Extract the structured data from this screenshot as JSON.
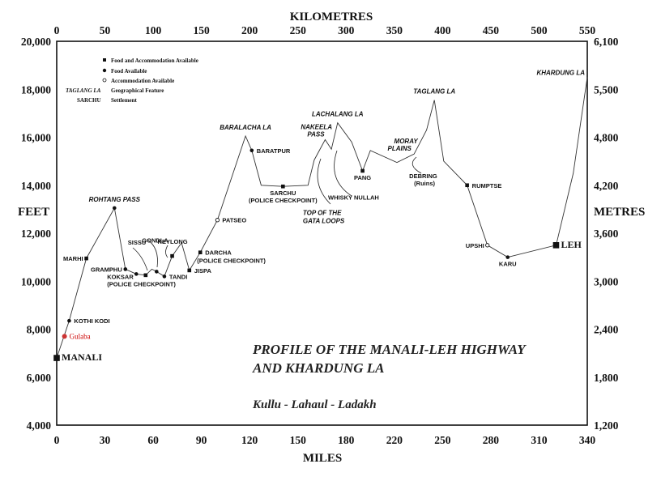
{
  "chart_data": {
    "type": "line",
    "title": "PROFILE OF THE MANALI-LEH HIGHWAY",
    "title_line2": "AND KHARDUNG LA",
    "subtitle": "Kullu - Lahaul - Ladakh",
    "xlabel_bottom": "MILES",
    "xlabel_top": "KILOMETRES",
    "ylabel_left": "FEET",
    "ylabel_right": "METRES",
    "xlim_miles": [
      0,
      340
    ],
    "ylim_feet": [
      4000,
      20000
    ],
    "x_ticks_miles": [
      "0",
      "30",
      "60",
      "90",
      "120",
      "150",
      "180",
      "220",
      "250",
      "280",
      "310",
      "340"
    ],
    "x_ticks_km": [
      "0",
      "50",
      "100",
      "150",
      "200",
      "250",
      "300",
      "350",
      "400",
      "450",
      "500",
      "550"
    ],
    "y_ticks_feet": [
      "4,000",
      "6,000",
      "8,000",
      "10,000",
      "12,000",
      "14,000",
      "16,000",
      "18,000",
      "20,000"
    ],
    "y_ticks_metres": [
      "1,200",
      "1,800",
      "2,400",
      "3,000",
      "3,600",
      "4,200",
      "4,800",
      "5,500",
      "6,100"
    ],
    "grid": false,
    "legend": {
      "placement": "top-left",
      "items": [
        {
          "marker": "square",
          "label": "Food and Accommodation Available"
        },
        {
          "marker": "circle",
          "label": "Food Available"
        },
        {
          "marker": "open-circle",
          "label": "Accommodation Available"
        },
        {
          "marker": "italic",
          "sample": "TAGLANG LA",
          "label": "Geographical Feature"
        },
        {
          "marker": "bold",
          "sample": "SARCHU",
          "label": "Settlement"
        }
      ]
    },
    "profile": [
      {
        "x": 0,
        "y": 6800
      },
      {
        "x": 8,
        "y": 8350
      },
      {
        "x": 19,
        "y": 10950
      },
      {
        "x": 37,
        "y": 13050
      },
      {
        "x": 44,
        "y": 10500
      },
      {
        "x": 51,
        "y": 10300
      },
      {
        "x": 57,
        "y": 10250
      },
      {
        "x": 61,
        "y": 10500
      },
      {
        "x": 64,
        "y": 10400
      },
      {
        "x": 69,
        "y": 10200
      },
      {
        "x": 74,
        "y": 11050
      },
      {
        "x": 80,
        "y": 11600
      },
      {
        "x": 85,
        "y": 10450
      },
      {
        "x": 92,
        "y": 11200
      },
      {
        "x": 103,
        "y": 12550
      },
      {
        "x": 121,
        "y": 16050
      },
      {
        "x": 125,
        "y": 15450
      },
      {
        "x": 131,
        "y": 14000
      },
      {
        "x": 145,
        "y": 13950
      },
      {
        "x": 161,
        "y": 14000
      },
      {
        "x": 165,
        "y": 15050
      },
      {
        "x": 172,
        "y": 15900
      },
      {
        "x": 176,
        "y": 15500
      },
      {
        "x": 180,
        "y": 16600
      },
      {
        "x": 189,
        "y": 15800
      },
      {
        "x": 196,
        "y": 14600
      },
      {
        "x": 201,
        "y": 15450
      },
      {
        "x": 218,
        "y": 14950
      },
      {
        "x": 229,
        "y": 15300
      },
      {
        "x": 237,
        "y": 16300
      },
      {
        "x": 242,
        "y": 17550
      },
      {
        "x": 248,
        "y": 15000
      },
      {
        "x": 263,
        "y": 14000
      },
      {
        "x": 276,
        "y": 11500
      },
      {
        "x": 289,
        "y": 11000
      },
      {
        "x": 320,
        "y": 11500
      },
      {
        "x": 331,
        "y": 14500
      },
      {
        "x": 340,
        "y": 18500
      }
    ],
    "places": [
      {
        "name": "MANALI",
        "x": 0,
        "y": 6800,
        "marker": "square-large",
        "style": "big",
        "pos": "right"
      },
      {
        "name": "Gulaba",
        "x": 5,
        "y": 7700,
        "marker": "red-circle",
        "style": "red",
        "pos": "right"
      },
      {
        "name": "KOTHI KODI",
        "x": 8,
        "y": 8350,
        "marker": "circle",
        "style": "place",
        "pos": "right"
      },
      {
        "name": "MARHI",
        "x": 19,
        "y": 10950,
        "marker": "square",
        "style": "place",
        "pos": "left"
      },
      {
        "name": "ROHTANG PASS",
        "x": 37,
        "y": 13050,
        "marker": "circle",
        "style": "pass",
        "pos": "top"
      },
      {
        "name": "GRAMPHU",
        "x": 44,
        "y": 10500,
        "marker": "circle",
        "style": "place",
        "pos": "left"
      },
      {
        "name": "SISSU",
        "x": 57,
        "y": 10250,
        "marker": "square",
        "style": "place",
        "pos": "sissu"
      },
      {
        "name": "KOKSAR",
        "x": 51,
        "y": 10300,
        "marker": "circle",
        "style": "place",
        "pos": "koksar"
      },
      {
        "name": "(POLICE CHECKPOINT)",
        "x": 51,
        "y": 10300,
        "marker": "none",
        "style": "place",
        "pos": "koksar2"
      },
      {
        "name": "GONDLA",
        "x": 64,
        "y": 10400,
        "marker": "circle",
        "style": "place",
        "pos": "gondla"
      },
      {
        "name": "TANDI",
        "x": 69,
        "y": 10200,
        "marker": "circle",
        "style": "place",
        "pos": "right"
      },
      {
        "name": "KEYLONG",
        "x": 74,
        "y": 11050,
        "marker": "square",
        "style": "place",
        "pos": "keylong"
      },
      {
        "name": "JISPA",
        "x": 85,
        "y": 10450,
        "marker": "square",
        "style": "place",
        "pos": "right"
      },
      {
        "name": "DARCHA",
        "x": 92,
        "y": 11200,
        "marker": "square",
        "style": "place",
        "pos": "right"
      },
      {
        "name": "(POLICE CHECKPOINT)",
        "x": 92,
        "y": 11200,
        "marker": "none",
        "style": "place",
        "pos": "darcha2"
      },
      {
        "name": "PATSEO",
        "x": 103,
        "y": 12550,
        "marker": "open-circle",
        "style": "place",
        "pos": "right"
      },
      {
        "name": "BARALACHA LA",
        "x": 121,
        "y": 16050,
        "marker": "none",
        "style": "pass",
        "pos": "top"
      },
      {
        "name": "BARATPUR",
        "x": 125,
        "y": 15450,
        "marker": "circle",
        "style": "place",
        "pos": "right"
      },
      {
        "name": "SARCHU",
        "x": 145,
        "y": 13950,
        "marker": "square",
        "style": "place",
        "pos": "below"
      },
      {
        "name": "(POLICE CHECKPOINT)",
        "x": 145,
        "y": 13950,
        "marker": "none",
        "style": "place",
        "pos": "below2"
      },
      {
        "name": "TOP OF THE",
        "x": 165,
        "y": 15050,
        "marker": "none",
        "style": "pass",
        "pos": "gata1"
      },
      {
        "name": "GATA LOOPS",
        "x": 165,
        "y": 15050,
        "marker": "none",
        "style": "pass",
        "pos": "gata2"
      },
      {
        "name": "NAKEELA",
        "x": 172,
        "y": 15900,
        "marker": "none",
        "style": "pass",
        "pos": "nakeela1"
      },
      {
        "name": "PASS",
        "x": 172,
        "y": 15900,
        "marker": "none",
        "style": "pass",
        "pos": "nakeela2"
      },
      {
        "name": "WHISKY NULLAH",
        "x": 176,
        "y": 15500,
        "marker": "none",
        "style": "place",
        "pos": "whisky"
      },
      {
        "name": "LACHALANG LA",
        "x": 180,
        "y": 16600,
        "marker": "none",
        "style": "pass",
        "pos": "top"
      },
      {
        "name": "PANG",
        "x": 196,
        "y": 14600,
        "marker": "square",
        "style": "place",
        "pos": "below"
      },
      {
        "name": "MORAY",
        "x": 210,
        "y": 15300,
        "marker": "none",
        "style": "pass",
        "pos": "moray1"
      },
      {
        "name": "PLAINS",
        "x": 210,
        "y": 15300,
        "marker": "none",
        "style": "pass",
        "pos": "moray2"
      },
      {
        "name": "DEBRING",
        "x": 229,
        "y": 15300,
        "marker": "none",
        "style": "place",
        "pos": "debring1"
      },
      {
        "name": "(Ruins)",
        "x": 229,
        "y": 15300,
        "marker": "none",
        "style": "place",
        "pos": "debring2"
      },
      {
        "name": "TAGLANG LA",
        "x": 242,
        "y": 17550,
        "marker": "none",
        "style": "pass",
        "pos": "top"
      },
      {
        "name": "RUMPTSE",
        "x": 263,
        "y": 14000,
        "marker": "square",
        "style": "place",
        "pos": "right"
      },
      {
        "name": "UPSHI",
        "x": 276,
        "y": 11500,
        "marker": "open-circle",
        "style": "place",
        "pos": "left"
      },
      {
        "name": "KARU",
        "x": 289,
        "y": 11000,
        "marker": "circle",
        "style": "place",
        "pos": "below"
      },
      {
        "name": "LEH",
        "x": 320,
        "y": 11500,
        "marker": "square-large",
        "style": "big",
        "pos": "right"
      },
      {
        "name": "KHARDUNG LA",
        "x": 340,
        "y": 18500,
        "marker": "none",
        "style": "pass",
        "pos": "khardung"
      }
    ]
  }
}
